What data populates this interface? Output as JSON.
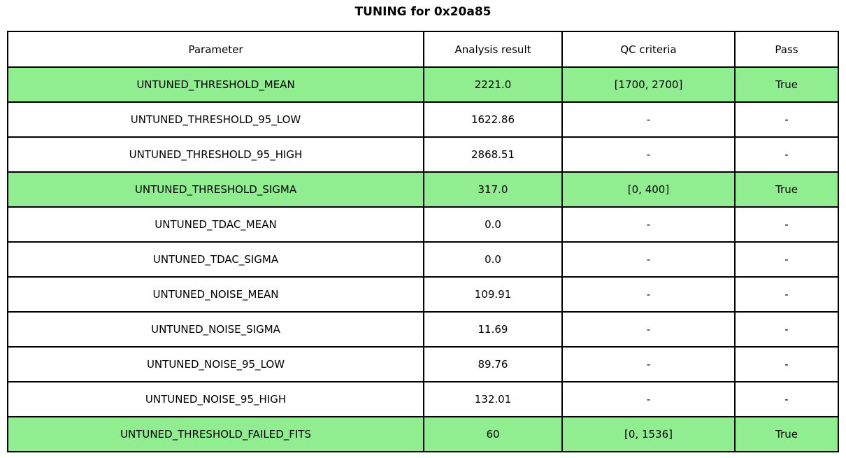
{
  "title": "TUNING for 0x20a85",
  "colors": {
    "highlight_green": "#90EE90",
    "border": "#000000",
    "background": "#ffffff",
    "text": "#000000"
  },
  "table": {
    "columns": [
      "Parameter",
      "Analysis result",
      "QC criteria",
      "Pass"
    ],
    "rows": [
      {
        "parameter": "UNTUNED_THRESHOLD_MEAN",
        "result": "2221.0",
        "qc": "[1700, 2700]",
        "pass": "True",
        "highlight": true
      },
      {
        "parameter": "UNTUNED_THRESHOLD_95_LOW",
        "result": "1622.86",
        "qc": "-",
        "pass": "-",
        "highlight": false
      },
      {
        "parameter": "UNTUNED_THRESHOLD_95_HIGH",
        "result": "2868.51",
        "qc": "-",
        "pass": "-",
        "highlight": false
      },
      {
        "parameter": "UNTUNED_THRESHOLD_SIGMA",
        "result": "317.0",
        "qc": "[0, 400]",
        "pass": "True",
        "highlight": true
      },
      {
        "parameter": "UNTUNED_TDAC_MEAN",
        "result": "0.0",
        "qc": "-",
        "pass": "-",
        "highlight": false
      },
      {
        "parameter": "UNTUNED_TDAC_SIGMA",
        "result": "0.0",
        "qc": "-",
        "pass": "-",
        "highlight": false
      },
      {
        "parameter": "UNTUNED_NOISE_MEAN",
        "result": "109.91",
        "qc": "-",
        "pass": "-",
        "highlight": false
      },
      {
        "parameter": "UNTUNED_NOISE_SIGMA",
        "result": "11.69",
        "qc": "-",
        "pass": "-",
        "highlight": false
      },
      {
        "parameter": "UNTUNED_NOISE_95_LOW",
        "result": "89.76",
        "qc": "-",
        "pass": "-",
        "highlight": false
      },
      {
        "parameter": "UNTUNED_NOISE_95_HIGH",
        "result": "132.01",
        "qc": "-",
        "pass": "-",
        "highlight": false
      },
      {
        "parameter": "UNTUNED_THRESHOLD_FAILED_FITS",
        "result": "60",
        "qc": "[0, 1536]",
        "pass": "True",
        "highlight": true
      }
    ]
  },
  "chart_data": {
    "type": "table",
    "title": "TUNING for 0x20a85",
    "columns": [
      "Parameter",
      "Analysis result",
      "QC criteria",
      "Pass"
    ],
    "rows": [
      [
        "UNTUNED_THRESHOLD_MEAN",
        "2221.0",
        "[1700, 2700]",
        "True"
      ],
      [
        "UNTUNED_THRESHOLD_95_LOW",
        "1622.86",
        "-",
        "-"
      ],
      [
        "UNTUNED_THRESHOLD_95_HIGH",
        "2868.51",
        "-",
        "-"
      ],
      [
        "UNTUNED_THRESHOLD_SIGMA",
        "317.0",
        "[0, 400]",
        "True"
      ],
      [
        "UNTUNED_TDAC_MEAN",
        "0.0",
        "-",
        "-"
      ],
      [
        "UNTUNED_TDAC_SIGMA",
        "0.0",
        "-",
        "-"
      ],
      [
        "UNTUNED_NOISE_MEAN",
        "109.91",
        "-",
        "-"
      ],
      [
        "UNTUNED_NOISE_SIGMA",
        "11.69",
        "-",
        "-"
      ],
      [
        "UNTUNED_NOISE_95_LOW",
        "89.76",
        "-",
        "-"
      ],
      [
        "UNTUNED_NOISE_95_HIGH",
        "132.01",
        "-",
        "-"
      ],
      [
        "UNTUNED_THRESHOLD_FAILED_FITS",
        "60",
        "[0, 1536]",
        "True"
      ]
    ],
    "highlighted_row_indices": [
      0,
      3,
      10
    ],
    "highlight_color": "#90EE90",
    "layout": "full-width table figure with centered bold title above"
  }
}
